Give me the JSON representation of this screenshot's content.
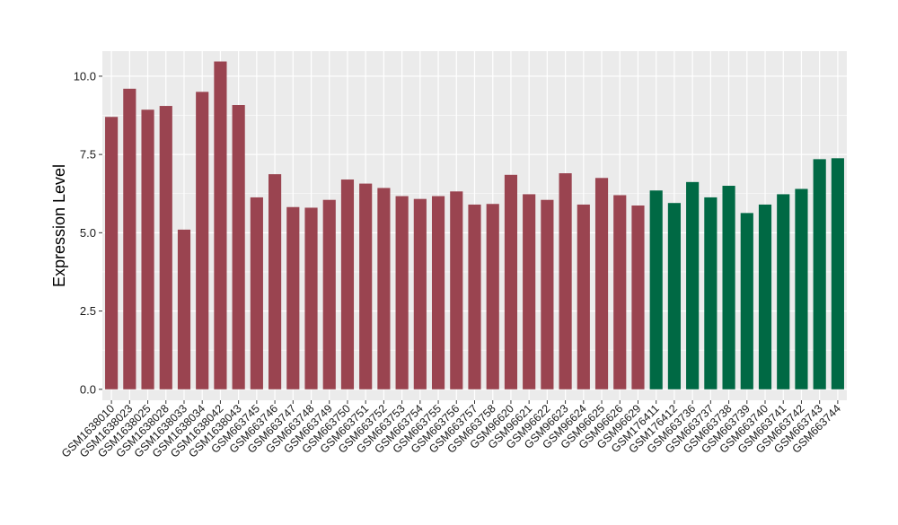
{
  "chart_data": {
    "type": "bar",
    "title": "",
    "xlabel": "",
    "ylabel": "Expression Level",
    "ylim": [
      -0.35,
      10.8
    ],
    "yticks": [
      0.0,
      2.5,
      5.0,
      7.5,
      10.0
    ],
    "ytick_labels": [
      "0.0",
      "2.5",
      "5.0",
      "7.5",
      "10.0"
    ],
    "grid": true,
    "legend": "none",
    "colors": {
      "group1": "#9a4450",
      "group2": "#006944",
      "panel": "#ebebeb",
      "grid": "#ffffff"
    },
    "categories": [
      "GSM1638010",
      "GSM1638023",
      "GSM1638025",
      "GSM1638028",
      "GSM1638033",
      "GSM1638034",
      "GSM1638042",
      "GSM1638043",
      "GSM663745",
      "GSM663746",
      "GSM663747",
      "GSM663748",
      "GSM663749",
      "GSM663750",
      "GSM663751",
      "GSM663752",
      "GSM663753",
      "GSM663754",
      "GSM663755",
      "GSM663756",
      "GSM663757",
      "GSM663758",
      "GSM96620",
      "GSM96621",
      "GSM96622",
      "GSM96623",
      "GSM96624",
      "GSM96625",
      "GSM96626",
      "GSM96629",
      "GSM176411",
      "GSM176412",
      "GSM663736",
      "GSM663737",
      "GSM663738",
      "GSM663739",
      "GSM663740",
      "GSM663741",
      "GSM663742",
      "GSM663743",
      "GSM663744"
    ],
    "values": [
      8.7,
      9.6,
      8.93,
      9.05,
      5.1,
      9.5,
      10.47,
      9.08,
      6.13,
      6.87,
      5.82,
      5.8,
      6.05,
      6.7,
      6.57,
      6.43,
      6.17,
      6.08,
      6.17,
      6.32,
      5.9,
      5.92,
      6.85,
      6.23,
      6.05,
      6.9,
      5.9,
      6.75,
      6.2,
      5.87,
      6.35,
      5.95,
      6.62,
      6.13,
      6.5,
      5.63,
      5.9,
      6.23,
      6.4,
      7.35,
      7.38
    ],
    "groups": [
      "group1",
      "group1",
      "group1",
      "group1",
      "group1",
      "group1",
      "group1",
      "group1",
      "group1",
      "group1",
      "group1",
      "group1",
      "group1",
      "group1",
      "group1",
      "group1",
      "group1",
      "group1",
      "group1",
      "group1",
      "group1",
      "group1",
      "group1",
      "group1",
      "group1",
      "group1",
      "group1",
      "group1",
      "group1",
      "group1",
      "group2",
      "group2",
      "group2",
      "group2",
      "group2",
      "group2",
      "group2",
      "group2",
      "group2",
      "group2",
      "group2"
    ]
  }
}
